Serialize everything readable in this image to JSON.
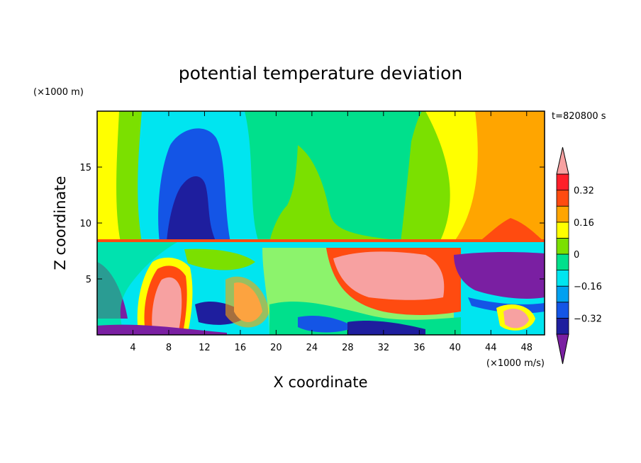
{
  "chart_data": {
    "type": "heatmap",
    "title": "potential temperature deviation",
    "xlabel": "X coordinate",
    "ylabel": "Z coordinate",
    "x_unit": "(×1000 m/s)",
    "y_unit": "(×1000 m)",
    "time_label": "t=820800 s",
    "xlim": [
      0,
      50
    ],
    "ylim": [
      0,
      20
    ],
    "x_ticks": [
      4,
      8,
      12,
      16,
      20,
      24,
      28,
      32,
      36,
      40,
      44,
      48
    ],
    "y_ticks": [
      5,
      10,
      15
    ],
    "colorbar": {
      "labels": [
        "0.32",
        "0.16",
        "0",
        "−0.16",
        "−0.32"
      ],
      "label_values": [
        0.32,
        0.16,
        0,
        -0.16,
        -0.32
      ],
      "levels": [
        -0.4,
        -0.32,
        -0.24,
        -0.16,
        -0.08,
        0,
        0.08,
        0.16,
        0.24,
        0.32,
        0.4
      ],
      "colors": [
        "#7a1fa2",
        "#1e1e9e",
        "#1455e6",
        "#00a0f0",
        "#00e5f0",
        "#00e08c",
        "#7be000",
        "#ffff00",
        "#ffa500",
        "#ff4b10",
        "#ff1f2a",
        "#f7a1a1"
      ],
      "extend": "both"
    },
    "regions": [
      {
        "name": "upper-west-yellow",
        "value": 0.2,
        "x": [
          0,
          5
        ],
        "z": [
          8.5,
          20
        ]
      },
      {
        "name": "upper-west-green",
        "value": 0.05,
        "x": [
          2.5,
          7.5
        ],
        "z": [
          8.5,
          20
        ]
      },
      {
        "name": "upper-cyan-plume",
        "value": -0.12,
        "x": [
          5,
          17
        ],
        "z": [
          8.5,
          20
        ]
      },
      {
        "name": "upper-blue-plume",
        "value": -0.2,
        "x": [
          6.5,
          14.5
        ],
        "z": [
          8.5,
          18
        ]
      },
      {
        "name": "upper-dark-blue-core",
        "value": -0.36,
        "x": [
          8,
          13.5
        ],
        "z": [
          8.5,
          14.5
        ]
      },
      {
        "name": "upper-central-green",
        "value": 0.02,
        "x": [
          17,
          38
        ],
        "z": [
          8.5,
          20
        ]
      },
      {
        "name": "upper-east-lime",
        "value": 0.08,
        "x": [
          36,
          42
        ],
        "z": [
          8.5,
          20
        ]
      },
      {
        "name": "upper-east-yellow",
        "value": 0.14,
        "x": [
          40,
          43
        ],
        "z": [
          8.5,
          20
        ]
      },
      {
        "name": "upper-east-orange",
        "value": 0.24,
        "x": [
          42,
          50
        ],
        "z": [
          8.5,
          20
        ]
      },
      {
        "name": "upper-east-red-dome",
        "value": 0.34,
        "x": [
          42.5,
          48.5
        ],
        "z": [
          8.5,
          10
        ]
      },
      {
        "name": "lower-west-purple",
        "value": -0.42,
        "x": [
          0,
          3
        ],
        "z": [
          2,
          6
        ]
      },
      {
        "name": "lower-pink-column",
        "value": 0.42,
        "x": [
          7,
          10
        ],
        "z": [
          1,
          6
        ]
      },
      {
        "name": "lower-east-pink-block",
        "value": 0.42,
        "x": [
          27,
          39
        ],
        "z": [
          3.5,
          8
        ]
      },
      {
        "name": "lower-east-purple",
        "value": -0.42,
        "x": [
          40,
          50
        ],
        "z": [
          3.5,
          7.5
        ]
      },
      {
        "name": "lower-east-pink-blob",
        "value": 0.42,
        "x": [
          45,
          47.5
        ],
        "z": [
          0.5,
          2.5
        ]
      }
    ]
  }
}
